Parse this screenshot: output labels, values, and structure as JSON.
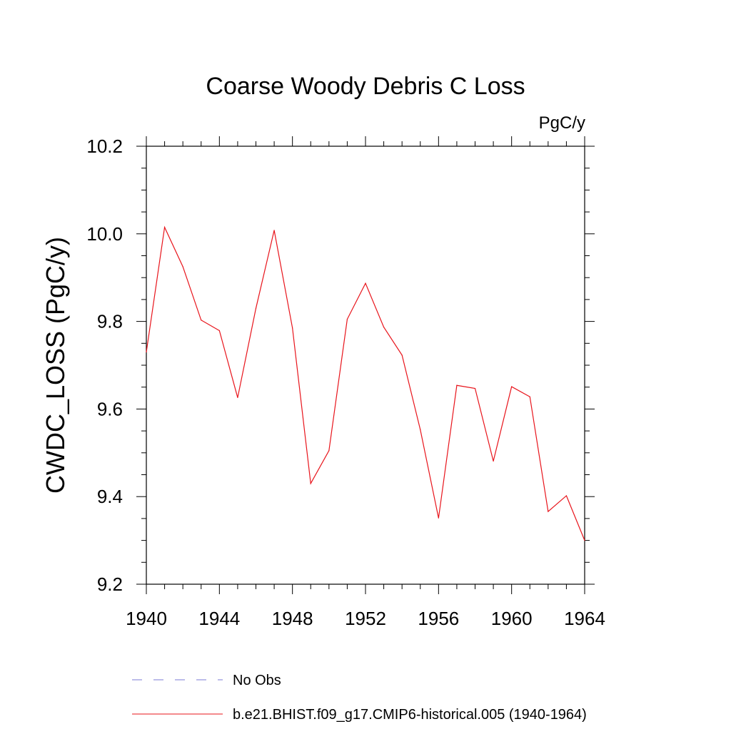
{
  "chart_data": {
    "type": "line",
    "title": "Coarse Woody Debris C Loss",
    "units_label": "PgC/y",
    "ylabel": "CWDC_LOSS  (PgC/y)",
    "xlabel": "",
    "xlim": [
      1940,
      1964
    ],
    "ylim": [
      9.2,
      10.2
    ],
    "x_ticks": [
      "1940",
      "1944",
      "1948",
      "1952",
      "1956",
      "1960",
      "1964"
    ],
    "y_ticks": [
      "9.2",
      "9.4",
      "9.6",
      "9.8",
      "10.0",
      "10.2"
    ],
    "grid": false,
    "legend_position": "bottom",
    "legend": [
      {
        "label": "No Obs",
        "style": "dashed",
        "color": "#7b7bd6"
      },
      {
        "label": "b.e21.BHIST.f09_g17.CMIP6-historical.005 (1940-1964)",
        "style": "solid",
        "color": "#e8141b"
      }
    ],
    "x": [
      1940,
      1941,
      1942,
      1943,
      1944,
      1945,
      1946,
      1947,
      1948,
      1949,
      1950,
      1951,
      1952,
      1953,
      1954,
      1955,
      1956,
      1957,
      1958,
      1959,
      1960,
      1961,
      1962,
      1963,
      1964
    ],
    "series": [
      {
        "name": "b.e21.BHIST.f09_g17.CMIP6-historical.005 (1940-1964)",
        "color": "#e8141b",
        "values": [
          9.73,
          10.015,
          9.925,
          9.803,
          9.779,
          9.626,
          9.83,
          10.008,
          9.785,
          9.43,
          9.505,
          9.805,
          9.887,
          9.787,
          9.723,
          9.553,
          9.351,
          9.654,
          9.647,
          9.481,
          9.651,
          9.628,
          9.366,
          9.402,
          9.3
        ]
      }
    ]
  }
}
